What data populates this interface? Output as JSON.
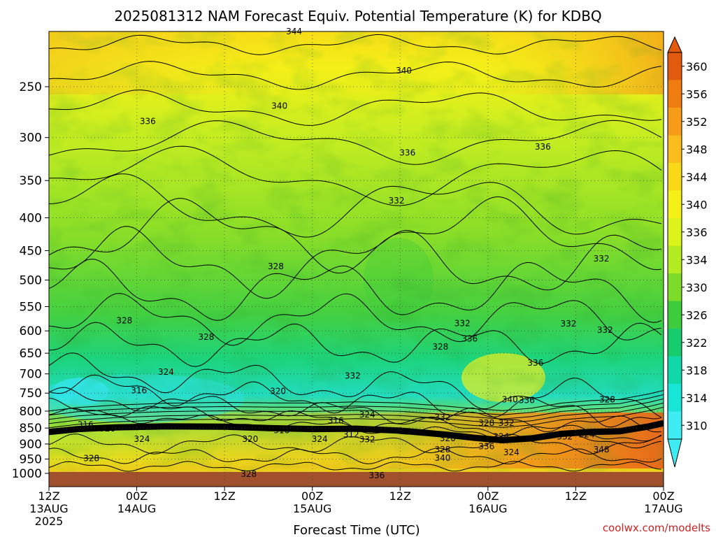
{
  "chart_data": {
    "type": "heatmap",
    "title": "2025081312 NAM Forecast Equiv. Potential Temperature (K) for KDBQ",
    "xlabel": "Forecast Time (UTC)",
    "ylabel": "",
    "credit": "coolwx.com/modelts",
    "x_ticks": [
      {
        "hour": 0,
        "line1": "12Z",
        "line2": "13AUG",
        "line3": "2025"
      },
      {
        "hour": 12,
        "line1": "00Z",
        "line2": "14AUG",
        "line3": ""
      },
      {
        "hour": 24,
        "line1": "12Z",
        "line2": "",
        "line3": ""
      },
      {
        "hour": 36,
        "line1": "00Z",
        "line2": "15AUG",
        "line3": ""
      },
      {
        "hour": 48,
        "line1": "12Z",
        "line2": "",
        "line3": ""
      },
      {
        "hour": 60,
        "line1": "00Z",
        "line2": "16AUG",
        "line3": ""
      },
      {
        "hour": 72,
        "line1": "12Z",
        "line2": "",
        "line3": ""
      },
      {
        "hour": 84,
        "line1": "00Z",
        "line2": "17AUG",
        "line3": ""
      }
    ],
    "x_range": [
      0,
      84
    ],
    "y_ticks": [
      250,
      300,
      350,
      400,
      450,
      500,
      550,
      600,
      650,
      700,
      750,
      800,
      850,
      900,
      950,
      1000
    ],
    "y_range_hpa": [
      200,
      1050
    ],
    "y_scale": "log",
    "grid": true,
    "colorbar": {
      "labels": [
        360,
        356,
        352,
        348,
        344,
        340,
        336,
        334,
        330,
        326,
        322,
        318,
        314,
        310
      ],
      "colors": [
        "#e25a0e",
        "#f07d10",
        "#f69c18",
        "#fbbc1e",
        "#f8d818",
        "#f4f018",
        "#dcf41c",
        "#b4ec22",
        "#7ddc2a",
        "#3ecc3c",
        "#16cc6c",
        "#10d8a8",
        "#18e4d8",
        "#40ecf4"
      ]
    },
    "contour_labels": [
      {
        "text": "344",
        "hour": 33.5,
        "p": 205
      },
      {
        "text": "340",
        "hour": 48.5,
        "p": 236
      },
      {
        "text": "340",
        "hour": 31.5,
        "p": 268
      },
      {
        "text": "336",
        "hour": 13.5,
        "p": 283
      },
      {
        "text": "336",
        "hour": 49.0,
        "p": 317
      },
      {
        "text": "336",
        "hour": 67.5,
        "p": 310
      },
      {
        "text": "332",
        "hour": 47.5,
        "p": 376
      },
      {
        "text": "332",
        "hour": 75.5,
        "p": 463
      },
      {
        "text": "328",
        "hour": 31.0,
        "p": 476
      },
      {
        "text": "328",
        "hour": 10.3,
        "p": 578
      },
      {
        "text": "328",
        "hour": 21.5,
        "p": 613
      },
      {
        "text": "332",
        "hour": 56.5,
        "p": 584
      },
      {
        "text": "336",
        "hour": 57.5,
        "p": 617
      },
      {
        "text": "328",
        "hour": 53.5,
        "p": 635
      },
      {
        "text": "332",
        "hour": 71.0,
        "p": 585
      },
      {
        "text": "332",
        "hour": 76.0,
        "p": 598
      },
      {
        "text": "336",
        "hour": 66.5,
        "p": 673
      },
      {
        "text": "324",
        "hour": 16.0,
        "p": 695
      },
      {
        "text": "332",
        "hour": 41.5,
        "p": 705
      },
      {
        "text": "316",
        "hour": 12.3,
        "p": 743
      },
      {
        "text": "320",
        "hour": 31.3,
        "p": 745
      },
      {
        "text": "340",
        "hour": 63.0,
        "p": 768
      },
      {
        "text": "336",
        "hour": 65.3,
        "p": 770
      },
      {
        "text": "328",
        "hour": 76.3,
        "p": 768
      },
      {
        "text": "324",
        "hour": 43.5,
        "p": 810
      },
      {
        "text": "332",
        "hour": 53.8,
        "p": 818
      },
      {
        "text": "316",
        "hour": 39.2,
        "p": 828
      },
      {
        "text": "328",
        "hour": 59.8,
        "p": 835
      },
      {
        "text": "332",
        "hour": 62.5,
        "p": 835
      },
      {
        "text": "316",
        "hour": 5.0,
        "p": 840
      },
      {
        "text": "320",
        "hour": 8.0,
        "p": 852
      },
      {
        "text": "316",
        "hour": 31.8,
        "p": 857
      },
      {
        "text": "312",
        "hour": 41.3,
        "p": 870
      },
      {
        "text": "324",
        "hour": 37.0,
        "p": 884
      },
      {
        "text": "332",
        "hour": 43.5,
        "p": 886
      },
      {
        "text": "320",
        "hour": 27.5,
        "p": 884
      },
      {
        "text": "324",
        "hour": 12.7,
        "p": 884
      },
      {
        "text": "320",
        "hour": 54.5,
        "p": 882
      },
      {
        "text": "324",
        "hour": 61.8,
        "p": 877
      },
      {
        "text": "332",
        "hour": 70.5,
        "p": 877
      },
      {
        "text": "324",
        "hour": 73.5,
        "p": 870
      },
      {
        "text": "328",
        "hour": 53.8,
        "p": 918
      },
      {
        "text": "336",
        "hour": 59.8,
        "p": 908
      },
      {
        "text": "340",
        "hour": 53.8,
        "p": 946
      },
      {
        "text": "348",
        "hour": 75.5,
        "p": 918
      },
      {
        "text": "324",
        "hour": 63.2,
        "p": 928
      },
      {
        "text": "328",
        "hour": 5.8,
        "p": 947
      },
      {
        "text": "328",
        "hour": 27.3,
        "p": 1002
      },
      {
        "text": "336",
        "hour": 44.8,
        "p": 1007
      }
    ],
    "ground_level_hpa": 995
  }
}
